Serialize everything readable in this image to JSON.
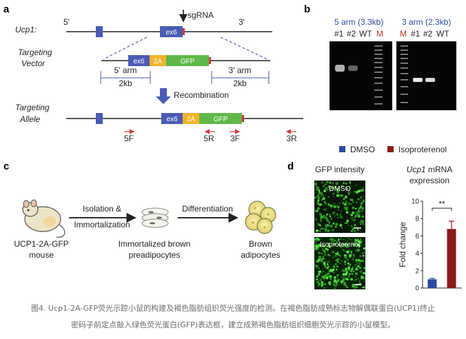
{
  "panels": {
    "a": "a",
    "b": "b",
    "c": "c",
    "d": "d"
  },
  "panel_a": {
    "gene_label": "Ucp1:",
    "targeting_vector_label": [
      "Targeting",
      "Vector"
    ],
    "targeting_allele_label": [
      "Targeting",
      "Allele"
    ],
    "end_5": "5'",
    "end_3": "3'",
    "sgrna": "sgRNA",
    "ex6": "ex6",
    "p2a": "2A",
    "gfp": "GFP",
    "arm5": "5' arm",
    "arm5_size": "2kb",
    "arm3": "3' arm",
    "arm3_size": "2kb",
    "recombination": "Recombination",
    "primers": [
      "5F",
      "5R",
      "3F",
      "3R"
    ]
  },
  "panel_b": {
    "gel1_title": "5 arm (3.3kb)",
    "gel1_lanes": [
      "#1",
      "#2",
      "WT",
      "M"
    ],
    "gel2_title": "3 arm (2.3kb)",
    "gel2_lanes": [
      "M",
      "#1",
      "#2",
      "WT"
    ],
    "marker_color": "#c0392b"
  },
  "legend": {
    "dmso": "DMSO",
    "iso": "Isoproterenol",
    "dmso_color": "#2e4a9e",
    "iso_color": "#8b1a1a"
  },
  "panel_c": {
    "step1": "Isolation &",
    "step1b": "Immortalization",
    "step2": "Differentiation",
    "mouse": [
      "UCP1-2A-GFP",
      "mouse"
    ],
    "preadipocytes": [
      "Immortalized brown",
      "preadipocytes"
    ],
    "adipocytes": [
      "Brown",
      "adipocytes"
    ]
  },
  "panel_d": {
    "gfp_title": "GFP intensity",
    "img1_label": "DMSO",
    "img2_label": "Isoproterenol",
    "chart_title_italic": "Ucp1",
    "chart_title_rest": " mRNA",
    "chart_title_line2": "expression"
  },
  "chart_data": {
    "type": "bar",
    "categories": [
      "DMSO",
      "Isoproterenol"
    ],
    "values": [
      1.0,
      6.8
    ],
    "errors": [
      0.1,
      0.9
    ],
    "colors": [
      "#2e4a9e",
      "#8b1a1a"
    ],
    "ylabel": "Fold change",
    "ylim": [
      0,
      10
    ],
    "yticks": [
      0,
      2,
      4,
      6,
      8,
      10
    ],
    "significance": "**"
  },
  "caption": {
    "line1": "图4. Ucp1-2A-GFP荧光示踪小鼠的构建及褐色脂肪组织荧光强度的检测。在褐色脂肪成熟标志物解偶联蛋白(UCP1)终止",
    "line2": "密码子前定点敲入绿色荧光蛋白(GFP)表达框，建立成熟褐色脂肪组织细胞荧光示踪的小鼠模型。"
  }
}
